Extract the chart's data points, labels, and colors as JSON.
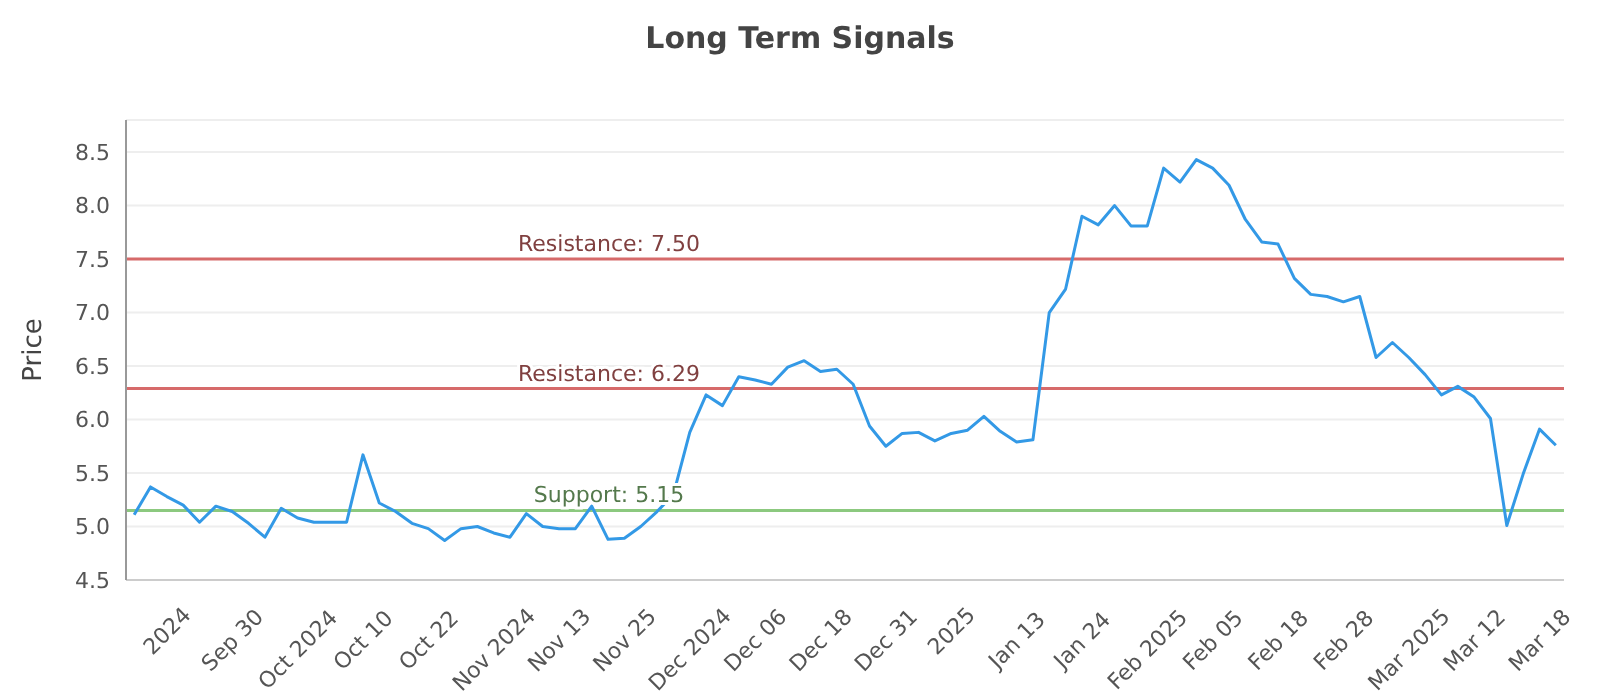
{
  "chart_data": {
    "type": "line",
    "title": "Long Term Signals",
    "ylabel": "Price",
    "categories": [
      null,
      null,
      "2024",
      null,
      null,
      null,
      "Sep 30",
      null,
      null,
      null,
      "Oct 2024",
      null,
      null,
      null,
      "Oct 10",
      null,
      null,
      null,
      "Oct 22",
      null,
      null,
      null,
      "Nov 2024",
      null,
      null,
      null,
      "Nov 13",
      null,
      null,
      null,
      "Nov 25",
      null,
      null,
      null,
      "Dec 2024",
      null,
      null,
      null,
      "Dec 06",
      null,
      null,
      null,
      "Dec 18",
      null,
      null,
      null,
      "Dec 31",
      null,
      null,
      null,
      "2025",
      null,
      null,
      null,
      "Jan 13",
      null,
      null,
      null,
      "Jan 24",
      null,
      null,
      null,
      "Feb 2025",
      null,
      null,
      null,
      "Feb 05",
      null,
      null,
      null,
      "Feb 18",
      null,
      null,
      null,
      "Feb 28",
      null,
      null,
      null,
      "Mar 2025",
      null,
      null,
      null,
      "Mar 12",
      null,
      null,
      null,
      "Mar 18",
      null
    ],
    "series": [
      {
        "color": "#3399e6",
        "values": [
          5.11,
          5.37,
          5.28,
          5.2,
          5.04,
          5.19,
          5.14,
          5.03,
          4.9,
          5.17,
          5.08,
          5.04,
          5.04,
          5.04,
          5.67,
          5.22,
          5.14,
          5.03,
          4.98,
          4.87,
          4.98,
          5.0,
          4.94,
          4.9,
          5.12,
          5.0,
          4.98,
          4.98,
          5.19,
          4.88,
          4.89,
          5.0,
          5.14,
          5.3,
          5.88,
          6.23,
          6.13,
          6.4,
          6.37,
          6.33,
          6.49,
          6.55,
          6.45,
          6.47,
          6.33,
          5.94,
          5.75,
          5.87,
          5.88,
          5.8,
          5.87,
          5.9,
          6.03,
          5.89,
          5.79,
          5.81,
          7.0,
          7.22,
          7.9,
          7.82,
          8.0,
          7.81,
          7.81,
          8.35,
          8.22,
          8.43,
          8.35,
          8.19,
          7.87,
          7.66,
          7.64,
          7.32,
          7.17,
          7.15,
          7.1,
          7.15,
          6.58,
          6.72,
          6.58,
          6.42,
          6.23,
          6.31,
          6.21,
          6.01,
          5.01,
          5.49,
          5.91,
          5.76
        ]
      }
    ],
    "ylim": [
      4.5,
      8.8
    ],
    "yticks": [
      4.5,
      {
        "value": 5,
        "label": "5.0"
      },
      5.5,
      {
        "value": 6,
        "label": "6.0"
      },
      6.5,
      {
        "value": 7,
        "label": "7.0"
      },
      7.5,
      {
        "value": 8,
        "label": "8.0"
      },
      8.5
    ],
    "grid": "y",
    "marker": "none",
    "line_style": "solid",
    "legend": false,
    "ref_lines": [
      {
        "axis": "y",
        "value": 7.5,
        "label": "Resistance: 7.50",
        "color": "#d66a6a"
      },
      {
        "axis": "y",
        "value": 6.29,
        "label": "Resistance: 6.29",
        "color": "#d66a6a"
      },
      {
        "axis": "y",
        "value": 5.15,
        "label": "Support: 5.15",
        "color": "#8cc97f"
      }
    ]
  }
}
